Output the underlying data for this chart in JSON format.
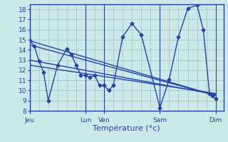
{
  "background_color": "#cce8e8",
  "grid_color": "#aacccc",
  "line_color": "#2244aa",
  "marker_style": "D",
  "marker_size": 2.5,
  "line_width": 1.0,
  "xlabel": "Température (°c)",
  "ylim": [
    8,
    18.5
  ],
  "yticks": [
    8,
    9,
    10,
    11,
    12,
    13,
    14,
    15,
    16,
    17,
    18
  ],
  "xtick_labels": [
    "Jeu",
    "Lun",
    "Ven",
    "Sam",
    "Dim"
  ],
  "xtick_positions": [
    0,
    36,
    48,
    84,
    120
  ],
  "xlim": [
    0,
    125
  ],
  "trend_lines": [
    {
      "x": [
        0,
        120
      ],
      "y": [
        14.9,
        9.5
      ]
    },
    {
      "x": [
        0,
        120
      ],
      "y": [
        13.0,
        9.6
      ]
    },
    {
      "x": [
        0,
        120
      ],
      "y": [
        12.5,
        9.7
      ]
    },
    {
      "x": [
        0,
        120
      ],
      "y": [
        14.5,
        9.5
      ]
    }
  ],
  "main_x": [
    0,
    3,
    6,
    9,
    12,
    18,
    24,
    27,
    30,
    33,
    36,
    39,
    42,
    45,
    48,
    51,
    54,
    60,
    66,
    72,
    84,
    90,
    96,
    102,
    108,
    112,
    116,
    118,
    120
  ],
  "main_y": [
    14.9,
    14.4,
    12.9,
    11.8,
    9.0,
    12.5,
    14.1,
    13.5,
    12.5,
    11.5,
    11.5,
    11.3,
    11.5,
    10.5,
    10.5,
    10.0,
    10.5,
    15.3,
    16.6,
    15.5,
    8.3,
    11.1,
    15.3,
    18.1,
    18.4,
    16.0,
    9.7,
    9.5,
    9.2
  ]
}
